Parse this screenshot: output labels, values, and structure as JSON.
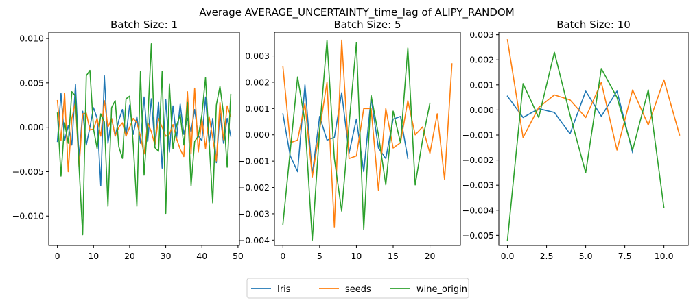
{
  "suptitle": "Average AVERAGE_UNCERTAINTY_time_lag of ALIPY_RANDOM",
  "legend": {
    "placement": "bottom-center",
    "entries": [
      "Iris",
      "seeds",
      "wine_origin"
    ]
  },
  "colors": {
    "Iris": "#1f77b4",
    "seeds": "#ff7f0e",
    "wine_origin": "#2ca02c"
  },
  "chart_data": [
    {
      "type": "line",
      "title": "Batch Size: 1",
      "xlabel": "",
      "ylabel": "",
      "xlim": [
        -2.4,
        50.4
      ],
      "ylim": [
        -0.0133,
        0.0107
      ],
      "xticks": [
        0,
        10,
        20,
        30,
        40,
        50
      ],
      "xtick_labels": [
        "0",
        "10",
        "20",
        "30",
        "40",
        "50"
      ],
      "yticks": [
        -0.01,
        -0.005,
        0.0,
        0.005,
        0.01
      ],
      "ytick_labels": [
        "−0.010",
        "−0.005",
        "0.000",
        "0.005",
        "0.010"
      ],
      "series": [
        {
          "name": "Iris",
          "values": [
            -0.0016,
            0.0038,
            -0.0015,
            0.0002,
            -0.002,
            0.0048,
            -0.0035,
            0.0018,
            -0.002,
            0.0,
            0.0022,
            0.001,
            -0.0066,
            0.0058,
            -0.0018,
            0.001,
            -0.001,
            0.0008,
            0.002,
            -0.001,
            0.0025,
            -0.0008,
            0.0012,
            -0.0018,
            0.0034,
            -0.0016,
            0.0032,
            -0.002,
            0.0028,
            -0.0046,
            0.0031,
            -0.0028,
            0.0024,
            -0.0012,
            0.0026,
            -0.0008,
            0.001,
            -0.0005,
            0.002,
            -0.001,
            -0.0015,
            0.0034,
            -0.0018,
            0.001,
            -0.004,
            0.0016,
            -0.0018,
            0.001,
            -0.001
          ]
        },
        {
          "name": "seeds",
          "values": [
            0.003,
            -0.0015,
            0.0038,
            -0.005,
            0.001,
            0.0028,
            -0.0045,
            0.0015,
            0.0016,
            -0.0003,
            -0.0002,
            0.001,
            -0.001,
            0.003,
            0.0,
            0.001,
            -0.001,
            0.0,
            0.0005,
            -0.001,
            0.0,
            0.001,
            0.0005,
            -0.001,
            -0.003,
            0.0005,
            -0.0005,
            -0.002,
            0.001,
            0.0,
            -0.001,
            -0.0008,
            0.0003,
            -0.0013,
            -0.0025,
            -0.0033,
            0.004,
            -0.003,
            0.0044,
            -0.0028,
            0.001,
            -0.0024,
            0.0012,
            -0.0012,
            -0.0038,
            0.0028,
            -0.0014,
            0.0024,
            0.0012
          ]
        },
        {
          "name": "wine_origin",
          "values": [
            0.0016,
            -0.0055,
            0.0005,
            -0.0018,
            0.004,
            0.0035,
            -0.0045,
            -0.0121,
            0.0058,
            0.0064,
            -0.0002,
            -0.0024,
            0.0015,
            0.0006,
            -0.0089,
            0.0022,
            0.003,
            -0.0022,
            -0.0035,
            0.0032,
            0.0035,
            -0.002,
            -0.0089,
            0.0063,
            -0.0054,
            0.0006,
            0.0094,
            -0.0023,
            -0.0027,
            0.0063,
            -0.0097,
            0.0049,
            -0.0024,
            0.0002,
            0.0014,
            -0.002,
            0.0028,
            -0.0066,
            -0.0016,
            -0.001,
            0.0014,
            0.0056,
            -0.0016,
            -0.0085,
            0.0025,
            0.0046,
            0.0015,
            -0.0045,
            0.0037
          ]
        }
      ]
    },
    {
      "type": "line",
      "title": "Batch Size: 5",
      "xlabel": "",
      "ylabel": "",
      "xlim": [
        -1.15,
        24.15
      ],
      "ylim": [
        -0.0042,
        0.0039
      ],
      "xticks": [
        0,
        5,
        10,
        15,
        20
      ],
      "xtick_labels": [
        "0",
        "5",
        "10",
        "15",
        "20"
      ],
      "yticks": [
        -0.004,
        -0.003,
        -0.002,
        -0.001,
        0.0,
        0.001,
        0.002,
        0.003
      ],
      "ytick_labels": [
        "−0.004",
        "−0.003",
        "−0.002",
        "−0.001",
        "0.000",
        "0.001",
        "0.002",
        "0.003"
      ],
      "series": [
        {
          "name": "Iris",
          "values": [
            0.0008,
            -0.0008,
            -0.0014,
            0.0019,
            -0.0015,
            0.0007,
            -0.0002,
            -0.0001,
            0.0016,
            -0.0007,
            0.0006,
            -0.0014,
            0.0014,
            -0.0005,
            -0.0009,
            0.0006,
            0.0007,
            -0.0009
          ]
        },
        {
          "name": "seeds",
          "values": [
            0.0026,
            -0.0003,
            -0.0002,
            0.0012,
            -0.0016,
            0.0002,
            0.002,
            -0.0035,
            0.0036,
            -0.0009,
            -0.0008,
            0.001,
            0.001,
            -0.0021,
            0.001,
            -0.0005,
            -0.0003,
            0.0013,
            0.0,
            0.0003,
            -0.0007,
            0.0008,
            -0.0017,
            0.0027
          ]
        },
        {
          "name": "wine_origin",
          "values": [
            -0.0034,
            -0.0006,
            0.0022,
            0.0005,
            -0.004,
            0.0002,
            0.0036,
            -0.0009,
            -0.0029,
            0.0004,
            0.0035,
            -0.0036,
            0.0015,
            0.0,
            -0.0019,
            0.0009,
            -0.0003,
            0.0033,
            -0.0019,
            -0.0002,
            0.0012
          ]
        }
      ]
    },
    {
      "type": "line",
      "title": "Batch Size: 10",
      "xlabel": "",
      "ylabel": "",
      "xlim": [
        -0.55,
        11.55
      ],
      "ylim": [
        -0.0054,
        0.0031
      ],
      "xticks": [
        0,
        2.5,
        5,
        7.5,
        10
      ],
      "xtick_labels": [
        "0.0",
        "2.5",
        "5.0",
        "7.5",
        "10.0"
      ],
      "yticks": [
        -0.005,
        -0.004,
        -0.003,
        -0.002,
        -0.001,
        0.0,
        0.001,
        0.002,
        0.003
      ],
      "ytick_labels": [
        "−0.005",
        "−0.004",
        "−0.003",
        "−0.002",
        "−0.001",
        "0.000",
        "0.001",
        "0.002",
        "0.003"
      ],
      "series": [
        {
          "name": "Iris",
          "values": [
            0.00055,
            -0.0003,
            5e-05,
            -0.0001,
            -0.00095,
            0.00075,
            -0.00025,
            0.00075,
            -0.0017
          ]
        },
        {
          "name": "seeds",
          "values": [
            0.0028,
            -0.0011,
            0.0001,
            0.0006,
            0.0004,
            -0.0003,
            0.0011,
            -0.0016,
            0.0008,
            -0.0006,
            0.0012,
            -0.001
          ]
        },
        {
          "name": "wine_origin",
          "values": [
            -0.0052,
            0.00105,
            -0.0003,
            0.0023,
            -0.0002,
            -0.0025,
            0.00165,
            0.0005,
            -0.0016,
            0.0008,
            -0.0039
          ]
        }
      ]
    }
  ]
}
